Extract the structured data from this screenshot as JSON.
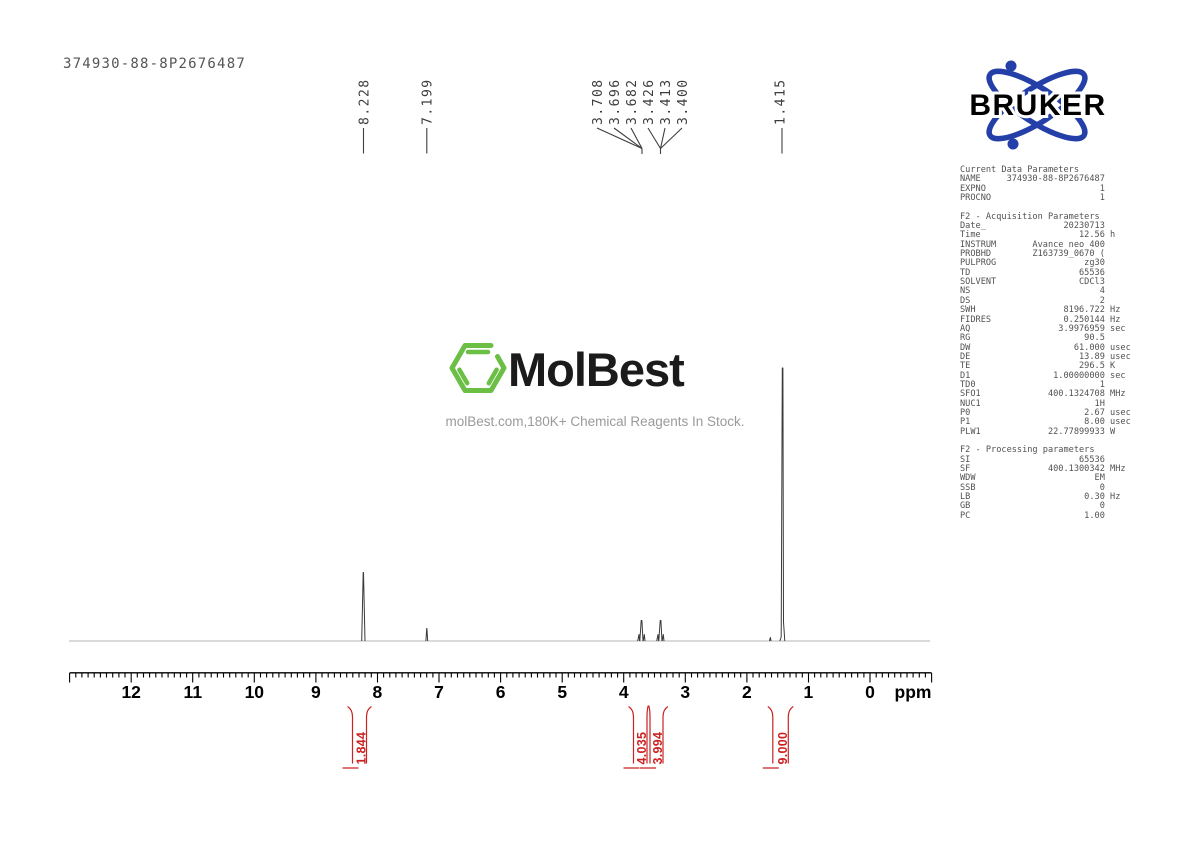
{
  "title": "374930-88-8P2676487",
  "watermark": {
    "brand": "MolBest",
    "tagline": "molBest.com,180K+ Chemical Reagents In Stock."
  },
  "bruker_logo_text": "BRUKER",
  "chart_data": {
    "type": "line",
    "title": "1H NMR spectrum 374930-88-8P2676487",
    "xlabel": "ppm",
    "x_axis": {
      "unit_label": "ppm",
      "tick_labels": [
        "12",
        "11",
        "10",
        "9",
        "8",
        "7",
        "6",
        "5",
        "4",
        "3",
        "2",
        "1",
        "0"
      ],
      "range_left_ppm": 13.0,
      "range_right_ppm": -1.0,
      "grid": false
    },
    "peak_labels": [
      "8.228",
      "7.199",
      "3.708",
      "3.696",
      "3.682",
      "3.426",
      "3.413",
      "3.400",
      "1.415"
    ],
    "peaks": [
      {
        "ppm": 8.228,
        "rel_height": 0.25
      },
      {
        "ppm": 7.199,
        "rel_height": 0.045
      },
      {
        "ppm": 3.696,
        "rel_height": 0.075,
        "multiplicity": "t"
      },
      {
        "ppm": 3.413,
        "rel_height": 0.075,
        "multiplicity": "t"
      },
      {
        "ppm": 1.415,
        "rel_height": 1.0
      }
    ],
    "integrals": [
      {
        "value": "1.844",
        "region_ppm": [
          8.48,
          8.02
        ]
      },
      {
        "value": "4.035",
        "region_ppm": [
          3.92,
          3.62
        ]
      },
      {
        "value": "3.994",
        "region_ppm": [
          3.58,
          3.3
        ]
      },
      {
        "value": "9.000",
        "region_ppm": [
          1.58,
          1.32
        ]
      }
    ]
  },
  "parameters_panel": {
    "lines": [
      "Current Data Parameters",
      "NAME     374930-88-8P2676487",
      "EXPNO                      1",
      "PROCNO                     1",
      "",
      "F2 - Acquisition Parameters",
      "Date_               20230713",
      "Time                   12.56 h",
      "INSTRUM       Avance neo 400",
      "PROBHD        Z163739_0670 (",
      "PULPROG                 zg30",
      "TD                     65536",
      "SOLVENT                CDCl3",
      "NS                         4",
      "DS                         2",
      "SWH                 8196.722 Hz",
      "FIDRES              0.250144 Hz",
      "AQ                 3.9976959 sec",
      "RG                      90.5",
      "DW                    61.000 usec",
      "DE                     13.89 usec",
      "TE                     296.5 K",
      "D1                1.00000000 sec",
      "TD0                        1",
      "SFO1             400.1324708 MHz",
      "NUC1                      1H",
      "P0                      2.67 usec",
      "P1                      8.00 usec",
      "PLW1             22.77899933 W",
      "",
      "F2 - Processing parameters",
      "SI                     65536",
      "SF               400.1300342 MHz",
      "WDW                       EM",
      "SSB                        0",
      "LB                      0.30 Hz",
      "GB                         0",
      "PC                      1.00"
    ]
  }
}
